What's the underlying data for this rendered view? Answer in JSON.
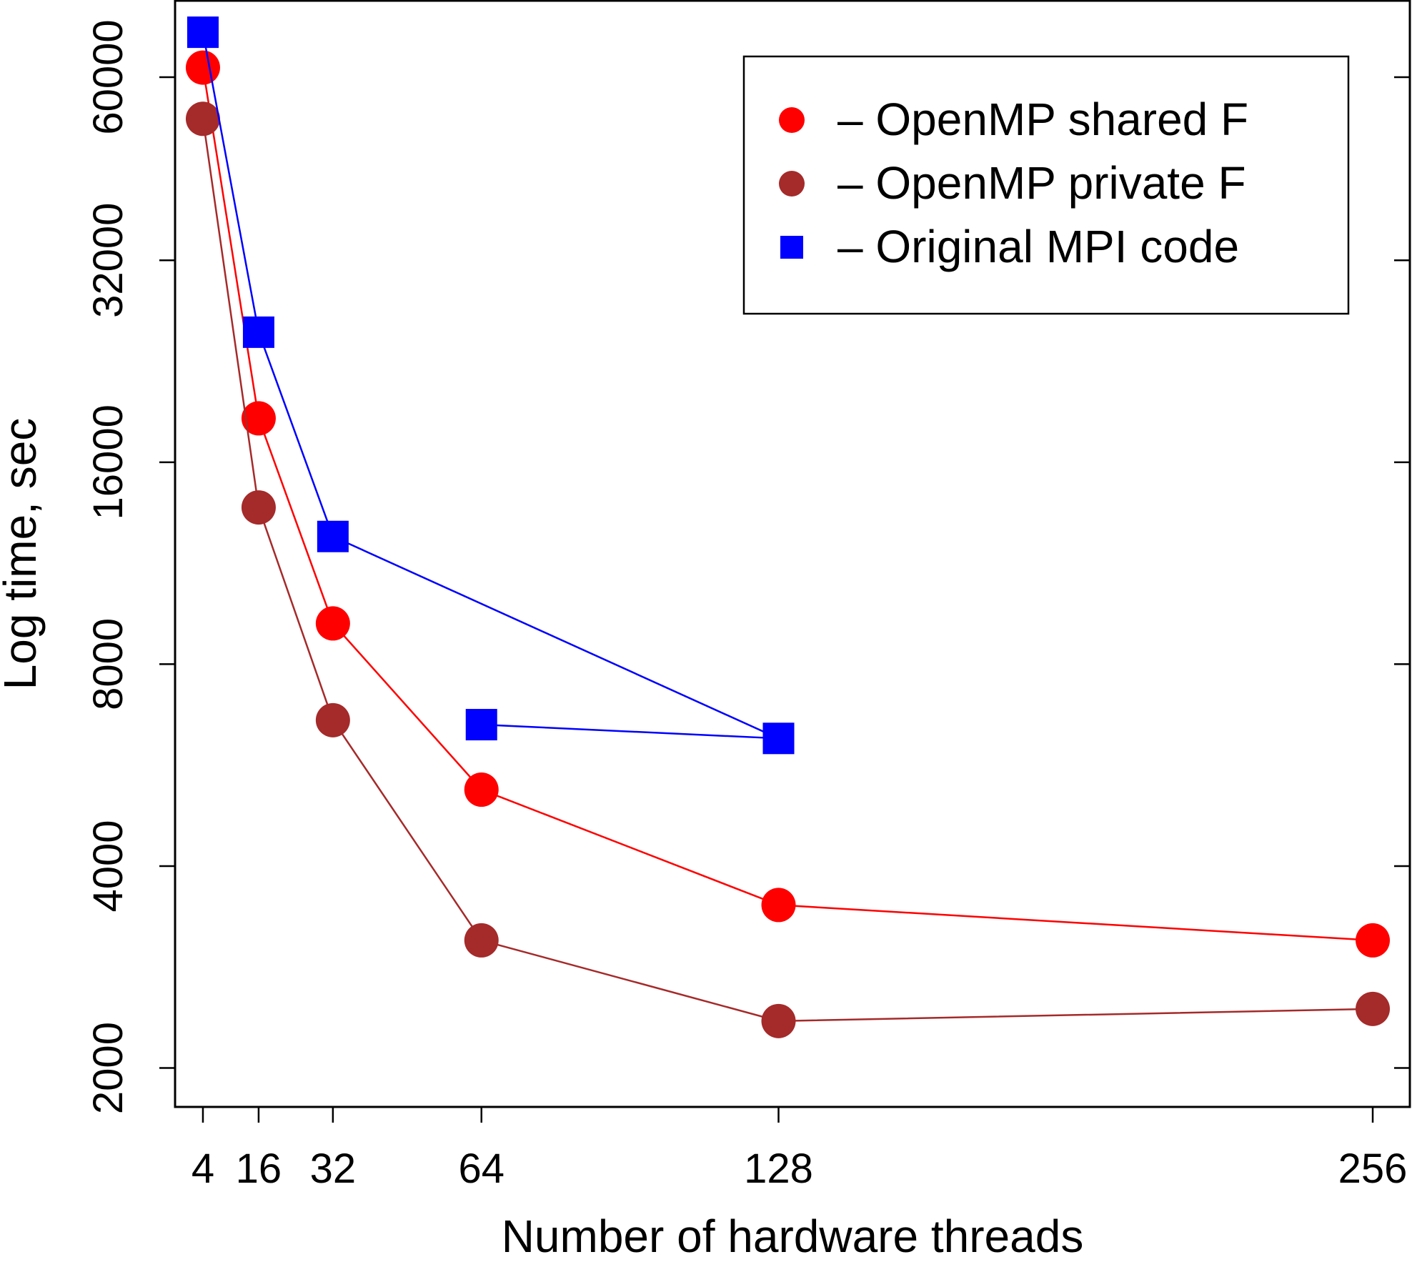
{
  "chart_data": {
    "type": "line",
    "title": "",
    "xlabel": "Number of hardware threads",
    "ylabel": "Log time, sec",
    "yscale": "log2",
    "xlim": [
      -2,
      264
    ],
    "ylim": [
      1750,
      78000
    ],
    "x_ticks": [
      4,
      16,
      32,
      64,
      128,
      256
    ],
    "x_tick_labels": [
      "4",
      "16",
      "32",
      "64",
      "128",
      "256"
    ],
    "y_ticks": [
      2000,
      4000,
      8000,
      16000,
      32000,
      60000
    ],
    "y_tick_labels": [
      "2000",
      "4000",
      "8000",
      "16000",
      "32000",
      "60000"
    ],
    "grid": false,
    "legend_position": "top-right",
    "series": [
      {
        "name": "– OpenMP shared F",
        "color": "#ff0000",
        "marker": "circle",
        "x": [
          4,
          16,
          32,
          64,
          128,
          256
        ],
        "y": [
          62000,
          18600,
          9200,
          5200,
          3500,
          3100
        ]
      },
      {
        "name": "– OpenMP private F",
        "color": "#a52a2a",
        "marker": "circle",
        "x": [
          4,
          16,
          32,
          64,
          128,
          256
        ],
        "y": [
          52000,
          13700,
          6600,
          3100,
          2350,
          2450
        ]
      },
      {
        "name": "– Original MPI code",
        "color": "#0000ff",
        "marker": "square",
        "x": [
          4,
          16,
          32,
          128,
          64
        ],
        "y": [
          70000,
          25000,
          12400,
          6200,
          6500
        ]
      }
    ]
  }
}
